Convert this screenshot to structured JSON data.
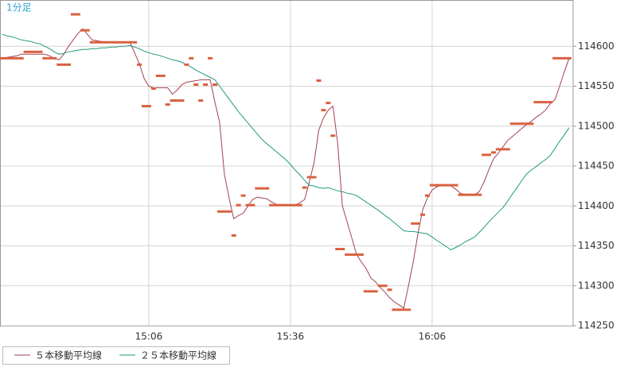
{
  "chart_data": {
    "type": "line",
    "title": "1分足",
    "categories": [
      null,
      null,
      null,
      null,
      null,
      null,
      null,
      null,
      null,
      null,
      null,
      null,
      null,
      null,
      null,
      null,
      null,
      null,
      null,
      null,
      null,
      null,
      null,
      null,
      null,
      null,
      null,
      null,
      null,
      null,
      null,
      "15:06",
      null,
      null,
      null,
      null,
      null,
      null,
      null,
      null,
      null,
      null,
      null,
      null,
      null,
      null,
      null,
      null,
      null,
      null,
      null,
      null,
      null,
      null,
      null,
      null,
      null,
      null,
      null,
      null,
      null,
      "15:36",
      null,
      null,
      null,
      null,
      null,
      null,
      null,
      null,
      null,
      null,
      null,
      null,
      null,
      null,
      null,
      null,
      null,
      null,
      null,
      null,
      null,
      null,
      null,
      null,
      null,
      null,
      null,
      null,
      null,
      "16:06",
      null,
      null,
      null,
      null,
      null,
      null,
      null,
      null,
      null,
      null,
      null,
      null,
      null,
      null,
      null,
      null,
      null,
      null,
      null,
      null,
      null,
      null,
      null,
      null,
      null,
      null,
      null,
      null,
      null
    ],
    "values": [
      114585,
      114585,
      114585,
      114585,
      114585,
      114593,
      114593,
      114593,
      114593,
      114585,
      114585,
      114585,
      114577,
      114577,
      114577,
      114640,
      114640,
      114620,
      114620,
      114605,
      114605,
      114605,
      114605,
      114605,
      114605,
      114605,
      114605,
      114605,
      114605,
      114577,
      114525,
      114525,
      114547,
      114563,
      114563,
      114527,
      114532,
      114532,
      114532,
      114577,
      114585,
      114552,
      114532,
      114552,
      114585,
      114552,
      114393,
      114393,
      114393,
      114363,
      114401,
      114413,
      114401,
      114401,
      114422,
      114422,
      114422,
      114401,
      114401,
      114401,
      114401,
      114401,
      114401,
      114401,
      114423,
      114436,
      114436,
      114557,
      114520,
      114529,
      114488,
      114346,
      114346,
      114339,
      114339,
      114339,
      114339,
      114293,
      114293,
      114293,
      114300,
      114300,
      114295,
      114270,
      114270,
      114270,
      114270,
      114378,
      114378,
      114389,
      114413,
      114426,
      114426,
      114426,
      114426,
      114426,
      114426,
      114414,
      114414,
      114414,
      114414,
      114414,
      114464,
      114464,
      114467,
      114471,
      114471,
      114471,
      114503,
      114503,
      114503,
      114503,
      114503,
      114530,
      114530,
      114530,
      114530,
      114585,
      114585,
      114585,
      114585
    ],
    "color": "#d9603f",
    "series": [
      {
        "name": "５本移動平均線",
        "color": "#a3424f",
        "values": [
          114585,
          114586,
          114587,
          114588,
          114590,
          114590,
          114590,
          114590,
          114590,
          114590,
          114588,
          114585,
          114583,
          114590,
          114600,
          114608,
          114616,
          114622,
          114615,
          114608,
          114607,
          114606,
          114605,
          114605,
          114605,
          114605,
          114605,
          114605,
          114592,
          114578,
          114560,
          114550,
          114548,
          114548,
          114548,
          114548,
          114540,
          114545,
          114552,
          114555,
          114556,
          114557,
          114558,
          114558,
          114558,
          114530,
          114505,
          114440,
          114410,
          114384,
          114388,
          114391,
          114400,
          114408,
          114411,
          114410,
          114409,
          114405,
          114402,
          114401,
          114401,
          114401,
          114401,
          114404,
          114408,
          114430,
          114454,
          114495,
          114510,
          114520,
          114525,
          114479,
          114400,
          114380,
          114360,
          114339,
          114330,
          114322,
          114310,
          114305,
          114298,
          114292,
          114285,
          114280,
          114276,
          114272,
          114300,
          114330,
          114365,
          114395,
          114410,
          114420,
          114424,
          114426,
          114426,
          114425,
          114421,
          114416,
          114414,
          114414,
          114414,
          114418,
          114430,
          114445,
          114459,
          114466,
          114474,
          114482,
          114487,
          114492,
          114497,
          114502,
          114506,
          114511,
          114515,
          114520,
          114528,
          114533,
          114550,
          114568,
          114585
        ]
      },
      {
        "name": "２５本移動平均線",
        "color": "#1e9a7f",
        "values": [
          114615,
          114613,
          114612,
          114610,
          114608,
          114607,
          114606,
          114604,
          114603,
          114600,
          114597,
          114593,
          114590,
          114591,
          114593,
          114594,
          114595,
          114596,
          114596,
          114597,
          114597,
          114598,
          114598,
          114599,
          114599,
          114600,
          114600,
          114601,
          114599,
          114597,
          114594,
          114592,
          114590,
          114589,
          114587,
          114585,
          114583,
          114582,
          114580,
          114577,
          114574,
          114570,
          114567,
          114564,
          114561,
          114558,
          114550,
          114542,
          114534,
          114526,
          114518,
          114511,
          114504,
          114497,
          114490,
          114483,
          114478,
          114473,
          114468,
          114463,
          114458,
          114452,
          114445,
          114439,
          114432,
          114426,
          114425,
          114423,
          114422,
          114423,
          114421,
          114419,
          114418,
          114416,
          114415,
          114413,
          114409,
          114405,
          114401,
          114397,
          114393,
          114388,
          114384,
          114379,
          114374,
          114369,
          114368,
          114368,
          114367,
          114366,
          114365,
          114361,
          114357,
          114353,
          114349,
          114345,
          114348,
          114351,
          114355,
          114358,
          114361,
          114367,
          114373,
          114380,
          114386,
          114392,
          114398,
          114406,
          114415,
          114423,
          114432,
          114440,
          114445,
          114449,
          114454,
          114458,
          114463,
          114472,
          114481,
          114489,
          114498
        ]
      }
    ],
    "ylim": [
      114250,
      114653
    ],
    "yticks": [
      114250,
      114300,
      114350,
      114400,
      114450,
      114500,
      114550,
      114600
    ],
    "grid": true
  }
}
